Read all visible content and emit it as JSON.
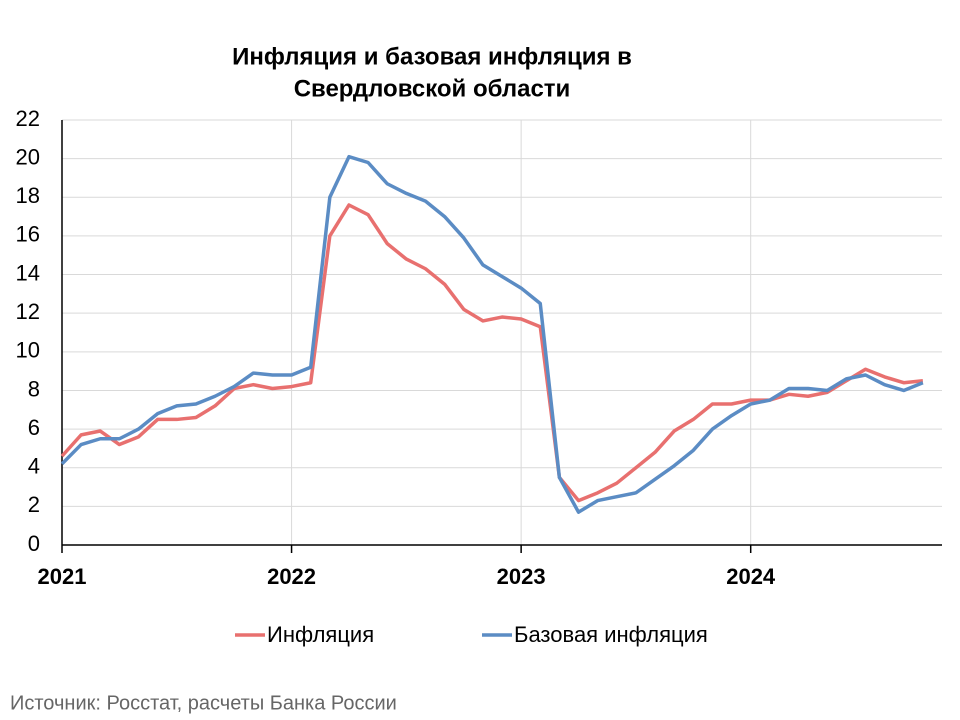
{
  "chart_data": {
    "type": "line",
    "title": [
      "Инфляция и базовая инфляция в",
      "Свердловской области"
    ],
    "categories": [
      "2021",
      null,
      null,
      null,
      null,
      null,
      null,
      null,
      null,
      null,
      null,
      null,
      "2022",
      null,
      null,
      null,
      null,
      null,
      null,
      null,
      null,
      null,
      null,
      null,
      "2023",
      null,
      null,
      null,
      null,
      null,
      null,
      null,
      null,
      null,
      null,
      null,
      "2024",
      null,
      null,
      null,
      null,
      null,
      null,
      null,
      null,
      null
    ],
    "series": [
      {
        "name": "Инфляция",
        "color": "#e8706f",
        "values": [
          4.6,
          5.7,
          5.9,
          5.2,
          5.6,
          6.5,
          6.5,
          6.6,
          7.2,
          8.1,
          8.3,
          8.1,
          8.2,
          8.4,
          16.0,
          17.6,
          17.1,
          15.6,
          14.8,
          14.3,
          13.5,
          12.2,
          11.6,
          11.8,
          11.7,
          11.3,
          3.5,
          2.3,
          2.7,
          3.2,
          4.0,
          4.8,
          5.9,
          6.5,
          7.3,
          7.3,
          7.5,
          7.5,
          7.8,
          7.7,
          7.9,
          8.5,
          9.1,
          8.7,
          8.4,
          8.5
        ]
      },
      {
        "name": "Базовая инфляция",
        "color": "#5b8cc4",
        "values": [
          4.2,
          5.2,
          5.5,
          5.5,
          6.0,
          6.8,
          7.2,
          7.3,
          7.7,
          8.2,
          8.9,
          8.8,
          8.8,
          9.2,
          18.0,
          20.1,
          19.8,
          18.7,
          18.2,
          17.8,
          17.0,
          15.9,
          14.5,
          13.9,
          13.3,
          12.5,
          3.5,
          1.7,
          2.3,
          2.5,
          2.7,
          3.4,
          4.1,
          4.9,
          6.0,
          6.7,
          7.3,
          7.5,
          8.1,
          8.1,
          8.0,
          8.6,
          8.8,
          8.3,
          8.0,
          8.4
        ]
      }
    ],
    "ylim": [
      0,
      22
    ],
    "yticks": [
      0,
      2,
      4,
      6,
      8,
      10,
      12,
      14,
      16,
      18,
      20,
      22
    ],
    "grid": true,
    "legend": "bottom",
    "source": "Источник: Росстат, расчеты Банка России"
  }
}
